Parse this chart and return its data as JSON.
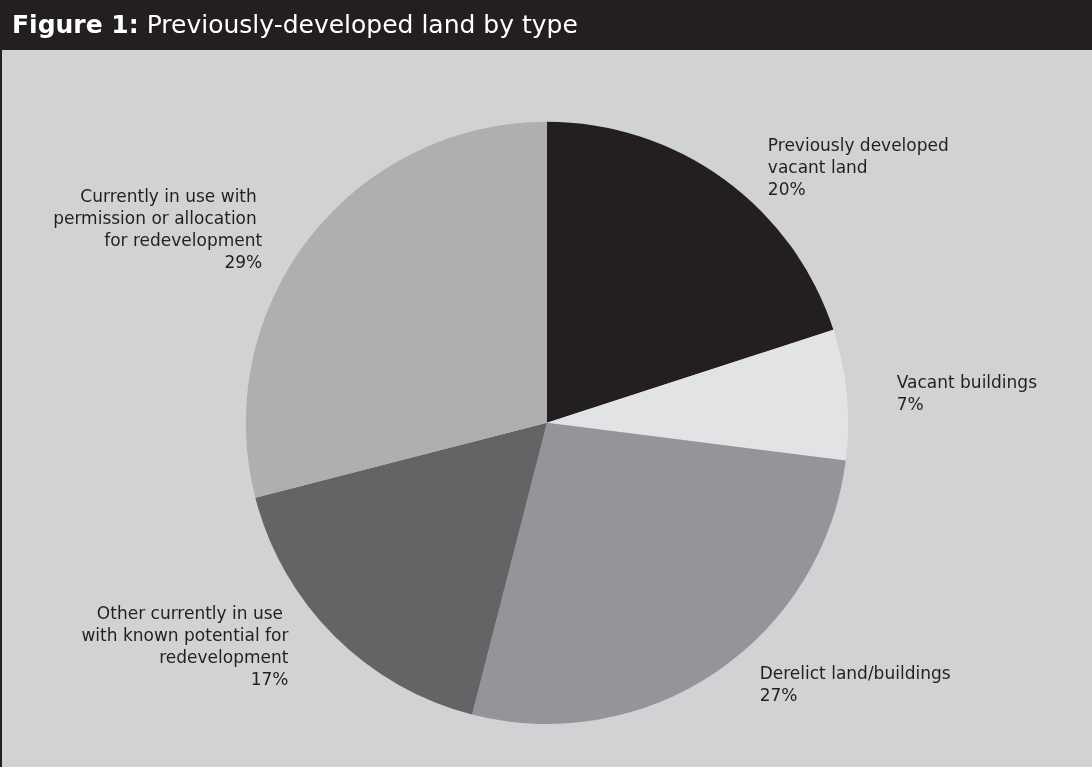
{
  "chart_data": {
    "type": "pie",
    "title": "Figure 1: Previously-developed land by type",
    "categories": [
      "Previously developed vacant land",
      "Vacant buildings",
      "Derelict land/buildings",
      "Other currently in use with known potential for redevelopment",
      "Currently in use with permission or allocation for redevelopment"
    ],
    "values": [
      20,
      7,
      27,
      17,
      29
    ],
    "value_labels": [
      "20%",
      "7%",
      "27%",
      "17%",
      "29%"
    ],
    "colors": [
      "#231f20",
      "#e2e3e4",
      "#939598",
      "#636466",
      "#aeafb1"
    ],
    "legend": false
  }
}
